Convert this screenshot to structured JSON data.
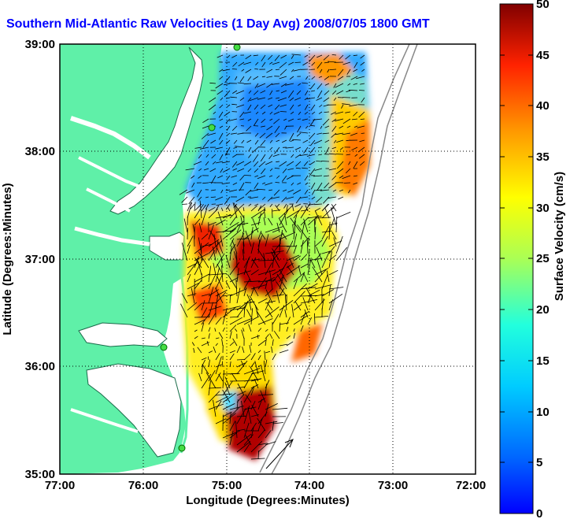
{
  "title": "Southern Mid-Atlantic Raw Velocities (1 Day Avg) 2008/07/05 1800 GMT",
  "map": {
    "x_axis_label": "Longitude (Degrees:Minutes)",
    "y_axis_label": "Latitude (Degrees:Minutes)",
    "lon_ticks": [
      "77:00",
      "76:00",
      "75:00",
      "74:00",
      "73:00",
      "72:00"
    ],
    "lat_ticks": [
      "39:00",
      "38:00",
      "37:00",
      "36:00",
      "35:00"
    ],
    "lon_range": [
      -77,
      -72
    ],
    "lat_range": [
      35,
      39
    ],
    "land_color": "#5ff0a8",
    "water_color": "#ffffff"
  },
  "colorbar": {
    "label": "Surface Velocity (cm/s)",
    "ticks": [
      "0",
      "5",
      "10",
      "15",
      "20",
      "25",
      "30",
      "35",
      "40",
      "45",
      "50"
    ],
    "range": [
      0,
      50
    ]
  }
}
